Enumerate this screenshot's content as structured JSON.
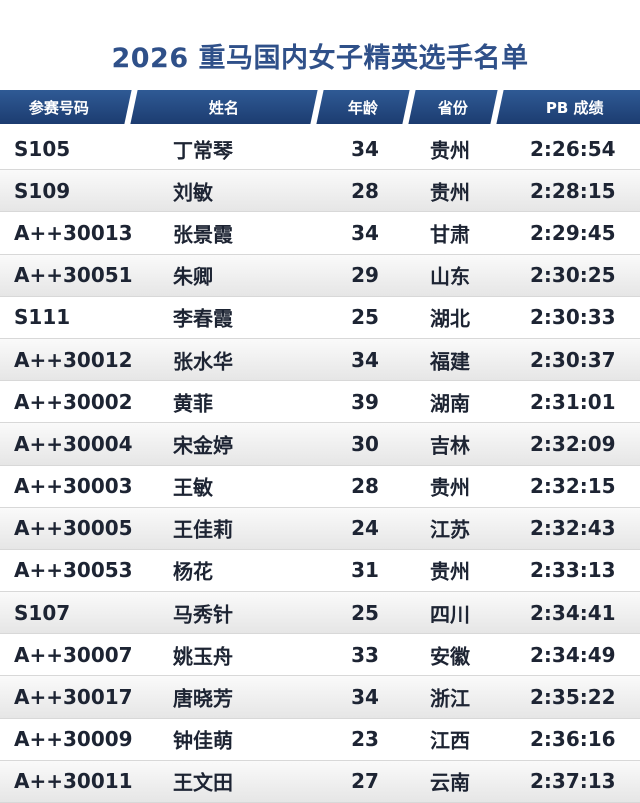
{
  "title": "2026 重马国内女子精英选手名单",
  "columns": [
    "参赛号码",
    "姓名",
    "年龄",
    "省份",
    "PB 成绩"
  ],
  "rows": [
    [
      "S105",
      "丁常琴",
      "34",
      "贵州",
      "2:26:54"
    ],
    [
      "S109",
      "刘敏",
      "28",
      "贵州",
      "2:28:15"
    ],
    [
      "A++30013",
      "张景霞",
      "34",
      "甘肃",
      "2:29:45"
    ],
    [
      "A++30051",
      "朱卿",
      "29",
      "山东",
      "2:30:25"
    ],
    [
      "S111",
      "李春霞",
      "25",
      "湖北",
      "2:30:33"
    ],
    [
      "A++30012",
      "张水华",
      "34",
      "福建",
      "2:30:37"
    ],
    [
      "A++30002",
      "黄菲",
      "39",
      "湖南",
      "2:31:01"
    ],
    [
      "A++30004",
      "宋金婷",
      "30",
      "吉林",
      "2:32:09"
    ],
    [
      "A++30003",
      "王敏",
      "28",
      "贵州",
      "2:32:15"
    ],
    [
      "A++30005",
      "王佳莉",
      "24",
      "江苏",
      "2:32:43"
    ],
    [
      "A++30053",
      "杨花",
      "31",
      "贵州",
      "2:33:13"
    ],
    [
      "S107",
      "马秀针",
      "25",
      "四川",
      "2:34:41"
    ],
    [
      "A++30007",
      "姚玉舟",
      "33",
      "安徽",
      "2:34:49"
    ],
    [
      "A++30017",
      "唐晓芳",
      "34",
      "浙江",
      "2:35:22"
    ],
    [
      "A++30009",
      "钟佳萌",
      "23",
      "江西",
      "2:36:16"
    ],
    [
      "A++30011",
      "王文田",
      "27",
      "云南",
      "2:37:13"
    ]
  ]
}
